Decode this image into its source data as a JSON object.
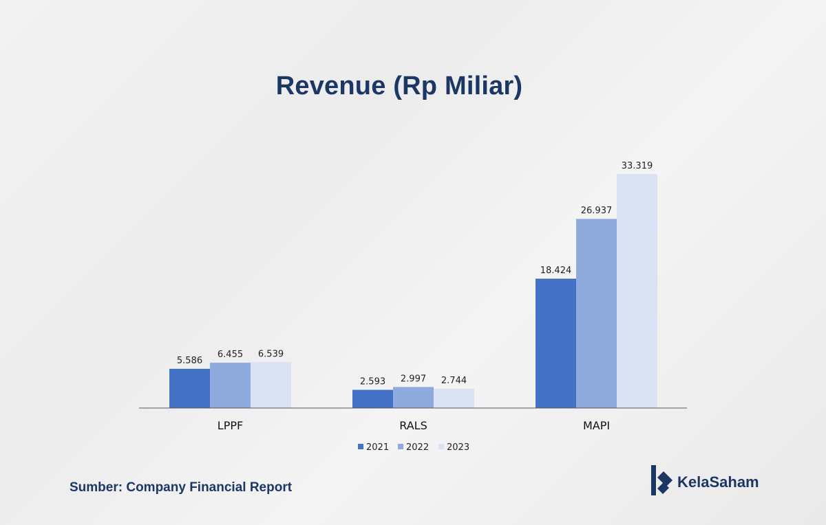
{
  "title": "Revenue (Rp Miliar)",
  "source": "Sumber: Company Financial Report",
  "brand": {
    "name": "KelaSaham",
    "color": "#1c3764"
  },
  "chart_data": {
    "type": "bar",
    "title": "Revenue (Rp Miliar)",
    "xlabel": "",
    "ylabel": "",
    "categories": [
      "LPPF",
      "RALS",
      "MAPI"
    ],
    "series": [
      {
        "name": "2021",
        "values": [
          5.586,
          2.593,
          18.424
        ],
        "labels": [
          "5.586",
          "2.593",
          "18.424"
        ],
        "color": "#4472c4"
      },
      {
        "name": "2022",
        "values": [
          6.455,
          2.997,
          26.937
        ],
        "labels": [
          "6.455",
          "2.997",
          "26.937"
        ],
        "color": "#8faadc"
      },
      {
        "name": "2023",
        "values": [
          6.539,
          2.744,
          33.319
        ],
        "labels": [
          "6.539",
          "2.744",
          "33.319"
        ],
        "color": "#dae3f3"
      }
    ],
    "ylim": [
      0,
      33.319
    ],
    "grid": false,
    "legend": "bottom-center"
  }
}
